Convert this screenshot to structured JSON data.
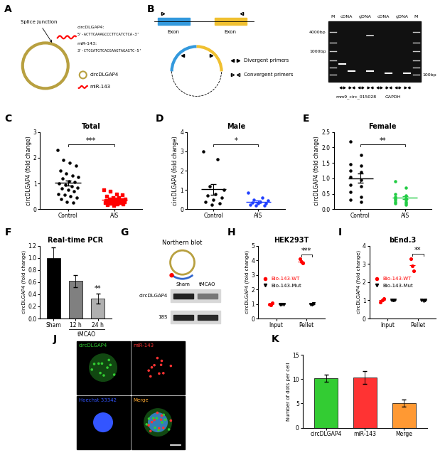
{
  "diagrams": {
    "A": {
      "label": "A",
      "splice_junction": "Splice junction",
      "sequences": [
        {
          "name": "circDLGAP4:",
          "seq": "5'-ACTTCAAAGCCCTTCATCTCA-3'"
        },
        {
          "name": "miR-143:",
          "seq": "3'-CTCGATGTCACGAAGTAGAGTC-5'"
        }
      ],
      "legend": [
        "circDLGAP4",
        "miR-143"
      ]
    },
    "B": {
      "label": "B",
      "exon": "Exon",
      "primers": [
        "Divergent primers",
        "Convergent primers"
      ],
      "gel": {
        "marker": "M",
        "lanes": [
          "cDNA",
          "gDNA",
          "cDNA",
          "gDNA"
        ],
        "sizes": [
          "4000bp",
          "1000bp",
          "100bp"
        ],
        "groups": [
          "mm9_circ_015028",
          "GAPDH"
        ]
      }
    },
    "G": {
      "label": "G",
      "title": "Northern blot",
      "rows": [
        "circDLGAP4",
        "18S"
      ],
      "columns": [
        "Sham",
        "tMCAO"
      ]
    },
    "J": {
      "label": "J",
      "channels": [
        {
          "name": "circDLGAP4",
          "color": "#33cc33"
        },
        {
          "name": "miR-143",
          "color": "#ff3333"
        },
        {
          "name": "Hoechst 33342",
          "color": "#3355ff"
        },
        {
          "name": "Merge",
          "color": "#ffaa33"
        }
      ]
    }
  },
  "chart_data": [
    {
      "label": "C",
      "type": "scatter",
      "title": "Total",
      "y_label": "circDLGAP4 (fold change)",
      "categories": [
        "Control",
        "AIS"
      ],
      "groups": [
        {
          "color": "#000000",
          "marker": "o",
          "mean": 1.02,
          "sem": 0.1,
          "values": [
            2.3,
            1.9,
            1.8,
            1.7,
            1.5,
            1.4,
            1.3,
            1.25,
            1.2,
            1.1,
            1.05,
            1.0,
            0.95,
            0.9,
            0.85,
            0.8,
            0.75,
            0.7,
            0.6,
            0.55,
            0.5,
            0.45,
            0.4,
            0.3,
            0.25
          ]
        },
        {
          "color": "#ff0000",
          "marker": "s",
          "mean": 0.38,
          "sem": 0.04,
          "values": [
            0.75,
            0.7,
            0.6,
            0.55,
            0.5,
            0.45,
            0.45,
            0.4,
            0.4,
            0.4,
            0.38,
            0.35,
            0.35,
            0.33,
            0.3,
            0.3,
            0.28,
            0.25,
            0.25,
            0.22,
            0.2,
            0.2,
            0.18,
            0.15,
            0.3
          ]
        }
      ],
      "ylim": [
        0,
        3
      ],
      "yticks": [
        0,
        1,
        2,
        3
      ],
      "significance": "***"
    },
    {
      "label": "D",
      "type": "scatter",
      "title": "Male",
      "y_label": "circDLGAP4 (fold change)",
      "categories": [
        "Control",
        "AIS"
      ],
      "groups": [
        {
          "color": "#000000",
          "marker": "o",
          "mean": 1.03,
          "sem": 0.28,
          "values": [
            3.0,
            2.6,
            1.2,
            1.0,
            0.8,
            0.7,
            0.6,
            0.5,
            0.4,
            0.3,
            0.25
          ]
        },
        {
          "color": "#2040ff",
          "marker": "o",
          "mean": 0.4,
          "sem": 0.06,
          "values": [
            0.85,
            0.6,
            0.5,
            0.45,
            0.4,
            0.35,
            0.3,
            0.3,
            0.25,
            0.2,
            0.2
          ]
        }
      ],
      "ylim": [
        0,
        4
      ],
      "yticks": [
        0,
        1,
        2,
        3,
        4
      ],
      "significance": "*"
    },
    {
      "label": "E",
      "type": "scatter",
      "title": "Female",
      "y_label": "circDLGAP4 (fold change)",
      "categories": [
        "Control",
        "AIS"
      ],
      "groups": [
        {
          "color": "#000000",
          "marker": "o",
          "mean": 1.0,
          "sem": 0.15,
          "values": [
            2.2,
            1.75,
            1.45,
            1.4,
            1.25,
            1.2,
            1.05,
            0.95,
            0.8,
            0.75,
            0.55,
            0.4,
            0.3,
            0.25
          ]
        },
        {
          "color": "#22cc44",
          "marker": "o",
          "mean": 0.37,
          "sem": 0.05,
          "values": [
            0.9,
            0.7,
            0.5,
            0.45,
            0.4,
            0.35,
            0.35,
            0.3,
            0.3,
            0.25,
            0.25,
            0.2,
            0.2,
            0.15
          ]
        }
      ],
      "ylim": [
        0,
        2.5
      ],
      "yticks": [
        {
          "value": 0,
          "label": "0.0"
        },
        0.5,
        {
          "value": 1,
          "label": "1.0"
        },
        1.5,
        {
          "value": 2,
          "label": "2.0"
        },
        2.5
      ],
      "significance": "**"
    },
    {
      "label": "F",
      "type": "bar",
      "title": "Real-time PCR",
      "y_label": "circDLGAP4 (fold change)",
      "categories": [
        "Sham",
        "12 h",
        "24 h"
      ],
      "group_label": "tMCAO",
      "values": [
        1.0,
        0.62,
        0.33
      ],
      "errors": [
        0.17,
        0.1,
        0.08
      ],
      "colors": [
        "#000000",
        "#808080",
        "#b0b0b0"
      ],
      "ylim": [
        0,
        1.2
      ],
      "yticks": [
        {
          "value": 0,
          "label": "0.0"
        },
        0.2,
        0.4,
        0.6,
        0.8,
        {
          "value": 1,
          "label": "1.0"
        },
        1.2
      ],
      "significance": "**"
    },
    {
      "label": "H",
      "type": "dotplot",
      "title": "HEK293T",
      "y_label": "circDLGAP4 (fold change)",
      "categories": [
        "Input",
        "Pellet"
      ],
      "legend": "center left",
      "series": [
        {
          "name": "Bio-143-WT",
          "color": "#ff0000",
          "marker": "o",
          "values": [
            [
              1.0,
              0.95,
              1.05
            ],
            [
              4.1,
              3.9,
              3.8
            ]
          ],
          "means": [
            1.0,
            3.93
          ]
        },
        {
          "name": "Bio-143-Mut",
          "color": "#000000",
          "marker": "v",
          "values": [
            [
              1.0,
              1.0,
              1.0
            ],
            [
              1.0,
              0.98,
              1.02
            ]
          ],
          "means": [
            1.0,
            1.0
          ]
        }
      ],
      "ylim": [
        0,
        5
      ],
      "yticks": [
        0,
        1,
        2,
        3,
        4,
        5
      ],
      "significance": "***"
    },
    {
      "label": "I",
      "type": "dotplot",
      "title": "bEnd.3",
      "y_label": "circDLGAP4 (fold change)",
      "categories": [
        "Input",
        "Pellet"
      ],
      "legend": "center left",
      "series": [
        {
          "name": "Bio-143-WT",
          "color": "#ff0000",
          "marker": "o",
          "values": [
            [
              0.9,
              1.0,
              1.1
            ],
            [
              3.3,
              2.9,
              2.6
            ]
          ],
          "means": [
            1.0,
            2.93
          ]
        },
        {
          "name": "Bio-143-Mut",
          "color": "#000000",
          "marker": "v",
          "values": [
            [
              1.0,
              1.0,
              1.0
            ],
            [
              1.0,
              0.98,
              1.02
            ]
          ],
          "means": [
            1.0,
            1.0
          ]
        }
      ],
      "ylim": [
        0,
        4
      ],
      "yticks": [
        0,
        1,
        2,
        3,
        4
      ],
      "significance": "**"
    },
    {
      "label": "K",
      "type": "bar",
      "y_label": "Number of dots per cell",
      "categories": [
        "circDLGAP4",
        "miR-143",
        "Merge"
      ],
      "values": [
        10.2,
        10.3,
        5.1
      ],
      "errors": [
        0.8,
        1.3,
        0.7
      ],
      "colors": [
        "#33cc33",
        "#ff3333",
        "#ff9933"
      ],
      "ylim": [
        0,
        15
      ],
      "yticks": [
        0,
        5,
        10,
        15
      ]
    }
  ]
}
